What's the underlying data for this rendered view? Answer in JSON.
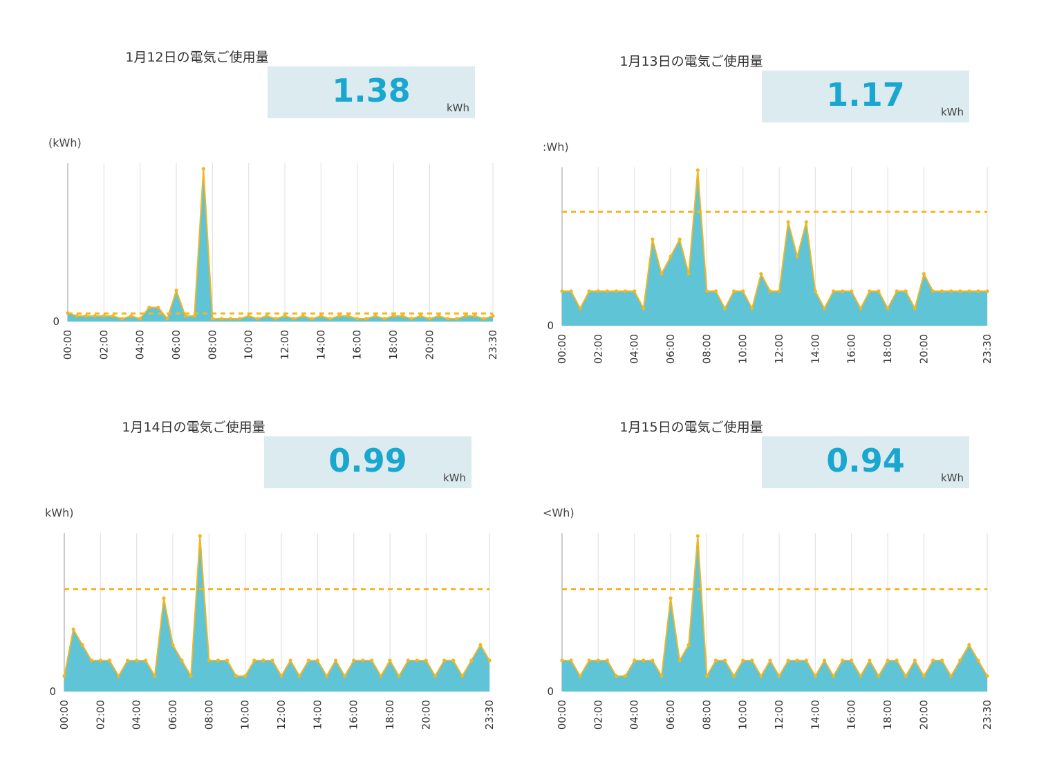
{
  "unit_label": "kWh",
  "axis_unit": "(kWh)",
  "zero_label": "0",
  "colors": {
    "area": "#5ec4d6",
    "line": "#f0b623",
    "average": "#f6b51c",
    "value_text": "#1aa7cf",
    "box_bg": "#dcebf0",
    "grid": "#e3e3e3"
  },
  "chart_data": [
    {
      "type": "area",
      "title": "1月12日の電気ご使用量",
      "total": "1.38",
      "unit": "kWh",
      "ylabel": "(kWh)",
      "x_ticks": [
        "00:00",
        "02:00",
        "04:00",
        "06:00",
        "08:00",
        "10:00",
        "12:00",
        "14:00",
        "16:00",
        "18:00",
        "20:00",
        "23:30"
      ],
      "x_tick_index": [
        0,
        4,
        8,
        12,
        16,
        20,
        24,
        28,
        32,
        36,
        40,
        47
      ],
      "interval_minutes": 30,
      "ylim": [
        0,
        0.55
      ],
      "average": 0.0288,
      "values": [
        0.03,
        0.02,
        0.02,
        0.02,
        0.02,
        0.02,
        0.01,
        0.02,
        0.01,
        0.05,
        0.05,
        0.01,
        0.11,
        0.02,
        0.02,
        0.54,
        0.01,
        0.01,
        0.01,
        0.01,
        0.02,
        0.01,
        0.02,
        0.01,
        0.02,
        0.01,
        0.02,
        0.01,
        0.02,
        0.01,
        0.02,
        0.02,
        0.01,
        0.01,
        0.02,
        0.01,
        0.02,
        0.02,
        0.01,
        0.02,
        0.01,
        0.02,
        0.01,
        0.01,
        0.02,
        0.02,
        0.01,
        0.02
      ]
    },
    {
      "type": "area",
      "title": "1月13日の電気ご使用量",
      "total": "1.17",
      "unit": "kWh",
      "ylabel": ":Wh)",
      "x_ticks": [
        "00:00",
        "02:00",
        "04:00",
        "06:00",
        "08:00",
        "10:00",
        "12:00",
        "14:00",
        "16:00",
        "18:00",
        "20:00",
        "23:30"
      ],
      "x_tick_index": [
        0,
        4,
        8,
        12,
        16,
        20,
        24,
        28,
        32,
        36,
        40,
        47
      ],
      "interval_minutes": 30,
      "ylim": [
        0,
        0.09
      ],
      "average": 0.0659,
      "values": [
        0.02,
        0.02,
        0.01,
        0.02,
        0.02,
        0.02,
        0.02,
        0.02,
        0.02,
        0.01,
        0.05,
        0.03,
        0.04,
        0.05,
        0.03,
        0.09,
        0.02,
        0.02,
        0.01,
        0.02,
        0.02,
        0.01,
        0.03,
        0.02,
        0.02,
        0.06,
        0.04,
        0.06,
        0.02,
        0.01,
        0.02,
        0.02,
        0.02,
        0.01,
        0.02,
        0.02,
        0.01,
        0.02,
        0.02,
        0.01,
        0.03,
        0.02,
        0.02,
        0.02,
        0.02,
        0.02,
        0.02,
        0.02
      ]
    },
    {
      "type": "area",
      "title": "1月14日の電気ご使用量",
      "total": "0.99",
      "unit": "kWh",
      "ylabel": "kWh)",
      "x_ticks": [
        "00:00",
        "02:00",
        "04:00",
        "06:00",
        "08:00",
        "10:00",
        "12:00",
        "14:00",
        "16:00",
        "18:00",
        "20:00",
        "23:30"
      ],
      "x_tick_index": [
        0,
        4,
        8,
        12,
        16,
        20,
        24,
        28,
        32,
        36,
        40,
        47
      ],
      "interval_minutes": 30,
      "ylim": [
        0,
        0.1
      ],
      "average": 0.0659,
      "values": [
        0.01,
        0.04,
        0.03,
        0.02,
        0.02,
        0.02,
        0.01,
        0.02,
        0.02,
        0.02,
        0.01,
        0.06,
        0.03,
        0.02,
        0.01,
        0.1,
        0.02,
        0.02,
        0.02,
        0.01,
        0.01,
        0.02,
        0.02,
        0.02,
        0.01,
        0.02,
        0.01,
        0.02,
        0.02,
        0.01,
        0.02,
        0.01,
        0.02,
        0.02,
        0.02,
        0.01,
        0.02,
        0.01,
        0.02,
        0.02,
        0.02,
        0.01,
        0.02,
        0.02,
        0.01,
        0.02,
        0.03,
        0.02
      ]
    },
    {
      "type": "area",
      "title": "1月15日の電気ご使用量",
      "total": "0.94",
      "unit": "kWh",
      "ylabel": "<Wh)",
      "x_ticks": [
        "00:00",
        "02:00",
        "04:00",
        "06:00",
        "08:00",
        "10:00",
        "12:00",
        "14:00",
        "16:00",
        "18:00",
        "20:00",
        "23:30"
      ],
      "x_tick_index": [
        0,
        4,
        8,
        12,
        16,
        20,
        24,
        28,
        32,
        36,
        40,
        47
      ],
      "interval_minutes": 30,
      "ylim": [
        0,
        0.1
      ],
      "average": 0.0659,
      "values": [
        0.02,
        0.02,
        0.01,
        0.02,
        0.02,
        0.02,
        0.01,
        0.01,
        0.02,
        0.02,
        0.02,
        0.01,
        0.06,
        0.02,
        0.03,
        0.1,
        0.01,
        0.02,
        0.02,
        0.01,
        0.02,
        0.02,
        0.01,
        0.02,
        0.01,
        0.02,
        0.02,
        0.02,
        0.01,
        0.02,
        0.01,
        0.02,
        0.02,
        0.01,
        0.02,
        0.01,
        0.02,
        0.02,
        0.01,
        0.02,
        0.01,
        0.02,
        0.02,
        0.01,
        0.02,
        0.03,
        0.02,
        0.01
      ]
    }
  ]
}
